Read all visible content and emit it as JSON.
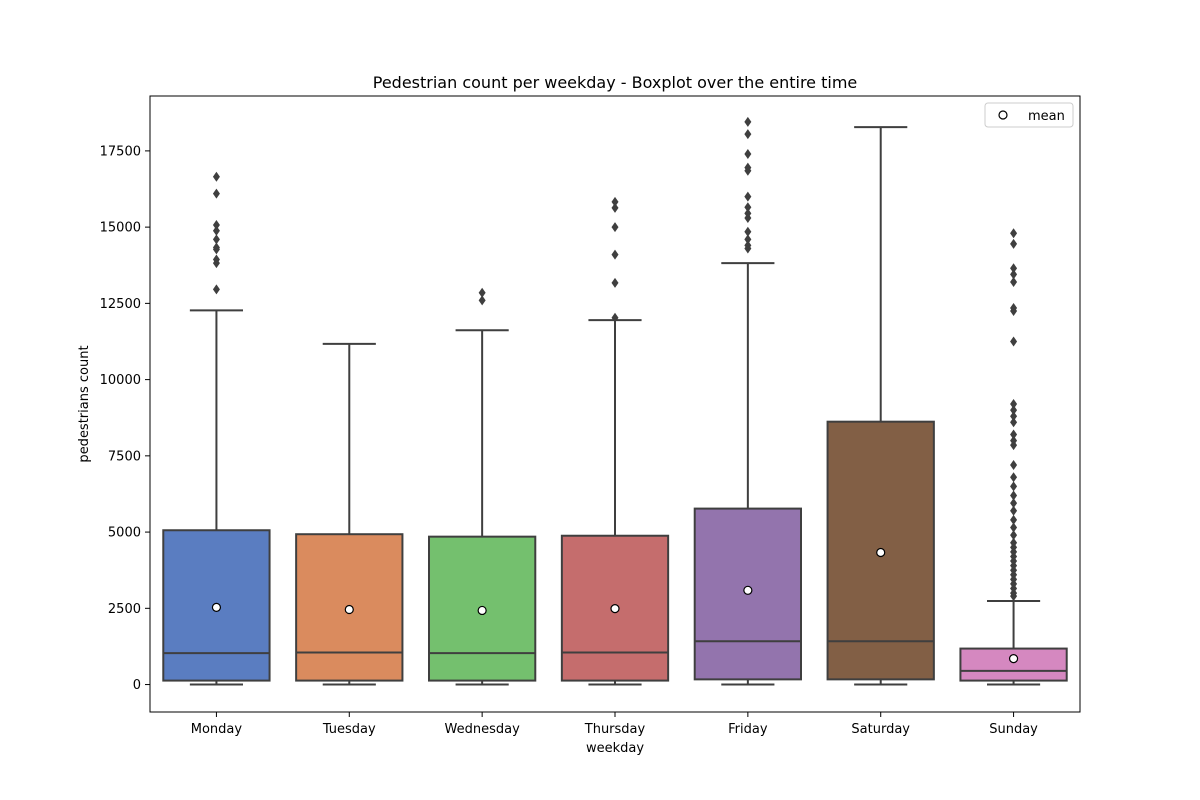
{
  "chart_data": {
    "type": "boxplot",
    "title": "Pedestrian count per weekday - Boxplot over the entire time",
    "xlabel": "weekday",
    "ylabel": "pedestrians count",
    "categories": [
      "Monday",
      "Tuesday",
      "Wednesday",
      "Thursday",
      "Friday",
      "Saturday",
      "Sunday"
    ],
    "ylim": [
      -900,
      19300
    ],
    "yticks": [
      0,
      2500,
      5000,
      7500,
      10000,
      12500,
      15000,
      17500
    ],
    "grid": false,
    "legend": {
      "position": "top-right",
      "entries": [
        "mean"
      ]
    },
    "boxes": [
      {
        "category": "Monday",
        "whisker_low": 0,
        "q1": 130,
        "median": 1030,
        "q3": 5060,
        "whisker_high": 12270,
        "mean": 2530,
        "outliers": [
          12960,
          13820,
          13940,
          14270,
          14330,
          14600,
          14880,
          15070,
          16100,
          16650
        ],
        "color": "#5a7dc1"
      },
      {
        "category": "Tuesday",
        "whisker_low": 0,
        "q1": 130,
        "median": 1050,
        "q3": 4930,
        "whisker_high": 11170,
        "mean": 2460,
        "outliers": [],
        "color": "#da8b5e"
      },
      {
        "category": "Wednesday",
        "whisker_low": 0,
        "q1": 130,
        "median": 1030,
        "q3": 4850,
        "whisker_high": 11620,
        "mean": 2430,
        "outliers": [
          12600,
          12850
        ],
        "color": "#74c06e"
      },
      {
        "category": "Thursday",
        "whisker_low": 0,
        "q1": 130,
        "median": 1050,
        "q3": 4880,
        "whisker_high": 11950,
        "mean": 2490,
        "outliers": [
          12030,
          13170,
          14100,
          15000,
          15630,
          15830
        ],
        "color": "#c56d6d"
      },
      {
        "category": "Friday",
        "whisker_low": 0,
        "q1": 170,
        "median": 1420,
        "q3": 5770,
        "whisker_high": 13820,
        "mean": 3090,
        "outliers": [
          14300,
          14400,
          14600,
          14850,
          15300,
          15450,
          15650,
          16000,
          16850,
          16950,
          17400,
          18050,
          18450
        ],
        "color": "#9374ad"
      },
      {
        "category": "Saturday",
        "whisker_low": 0,
        "q1": 170,
        "median": 1420,
        "q3": 8620,
        "whisker_high": 18280,
        "mean": 4330,
        "outliers": [],
        "color": "#825f45"
      },
      {
        "category": "Sunday",
        "whisker_low": 0,
        "q1": 130,
        "median": 450,
        "q3": 1180,
        "whisker_high": 2740,
        "mean": 850,
        "outliers": [
          2900,
          3000,
          3150,
          3300,
          3450,
          3600,
          3750,
          3900,
          4050,
          4200,
          4350,
          4500,
          4650,
          4900,
          5150,
          5400,
          5700,
          5950,
          6200,
          6500,
          6800,
          7200,
          7850,
          8000,
          8200,
          8600,
          8800,
          9000,
          9200,
          11250,
          12250,
          12350,
          13200,
          13450,
          13650,
          14450,
          14800
        ],
        "color": "#d588c0"
      }
    ]
  }
}
